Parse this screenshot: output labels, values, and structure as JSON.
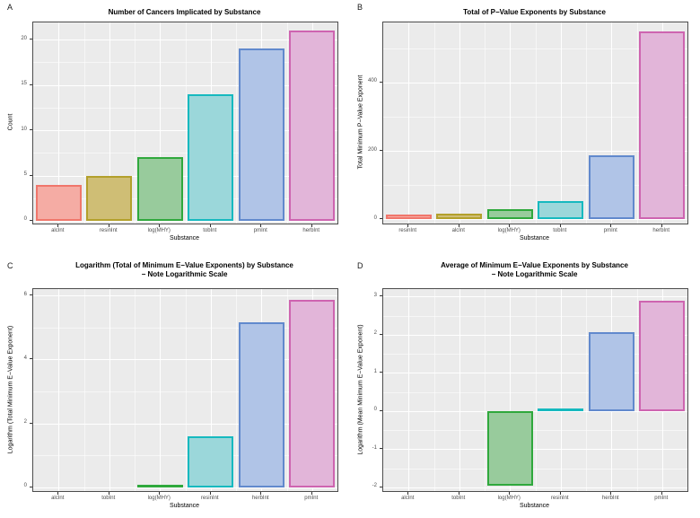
{
  "figure": {
    "background": "#FFFFFF",
    "panel_bg": "#EBEBEB",
    "panel_border": "#4D4D4D",
    "grid_major": "#FFFFFF",
    "grid_minor": "rgba(255,255,255,0.55)"
  },
  "palette": [
    {
      "name": "salmon",
      "stroke": "#F0766B",
      "fill": "#F5ACA4"
    },
    {
      "name": "olive",
      "stroke": "#B3A02B",
      "fill": "#CFBE75"
    },
    {
      "name": "green",
      "stroke": "#2FA83C",
      "fill": "#98CB9C"
    },
    {
      "name": "cyan",
      "stroke": "#16B9BF",
      "fill": "#9BD7DA"
    },
    {
      "name": "blue",
      "stroke": "#6189CD",
      "fill": "#B0C4E7"
    },
    {
      "name": "magenta",
      "stroke": "#CE64B0",
      "fill": "#E2B5D9"
    }
  ],
  "chart_data": [
    {
      "type": "bar",
      "panel_label": "A",
      "title": "Number of Cancers Implicated by Substance",
      "xlabel": "Substance",
      "ylabel": "Count",
      "categories": [
        "alcInt",
        "resinInt",
        "log(MHY)",
        "tobInt",
        "pmInt",
        "herbInt"
      ],
      "values": [
        4,
        5,
        7,
        14,
        19,
        21
      ],
      "ylim": [
        -0.3,
        21.9
      ],
      "yticks": [
        0,
        5,
        10,
        15,
        20
      ],
      "yminor": [
        2.5,
        7.5,
        12.5,
        17.5
      ],
      "grid": true,
      "legend": "none"
    },
    {
      "type": "bar",
      "panel_label": "B",
      "title": "Total of P−Value Exponents by Substance",
      "xlabel": "Substance",
      "ylabel": "Total Minimum P−Value Exponent",
      "categories": [
        "resinInt",
        "alcInt",
        "log(MHY)",
        "tobInt",
        "pmInt",
        "herbInt"
      ],
      "values": [
        14,
        18,
        30,
        53,
        188,
        550
      ],
      "ylim": [
        -12,
        575
      ],
      "yticks": [
        0,
        200,
        400
      ],
      "yminor": [
        100,
        300,
        500
      ],
      "grid": true,
      "legend": "none"
    },
    {
      "type": "bar",
      "panel_label": "C",
      "title": "Logarithm (Total of Minimum E−Value Exponents) by Substance\n− Note Logarithmic Scale",
      "xlabel": "Substance",
      "ylabel": "Logarithm (Total Minimum E−Value Exponent)",
      "categories": [
        "alcInt",
        "tobInt",
        "log(MHY)",
        "resinInt",
        "herbInt",
        "pmInt"
      ],
      "values": [
        0,
        0,
        0.05,
        1.6,
        5.15,
        5.85
      ],
      "ylim": [
        -0.12,
        6.2
      ],
      "yticks": [
        0,
        2,
        4,
        6
      ],
      "yminor": [
        1,
        3,
        5
      ],
      "grid": true,
      "legend": "none"
    },
    {
      "type": "bar",
      "panel_label": "D",
      "title": "Average of Minimum E−Value Exponents by Substance\n− Note Logarithmic Scale",
      "xlabel": "Substance",
      "ylabel": "Logarithm (Mean Minimum E−Value Exponent)",
      "categories": [
        "alcInt",
        "tobInt",
        "log(MHY)",
        "resinInt",
        "herbInt",
        "pmInt"
      ],
      "values": [
        0,
        0,
        -1.95,
        0.02,
        2.07,
        2.9
      ],
      "ylim": [
        -2.1,
        3.2
      ],
      "yticks": [
        -2,
        -1,
        0,
        1,
        2,
        3
      ],
      "yminor": [
        -1.5,
        -0.5,
        0.5,
        1.5,
        2.5
      ],
      "grid": true,
      "legend": "none"
    }
  ]
}
